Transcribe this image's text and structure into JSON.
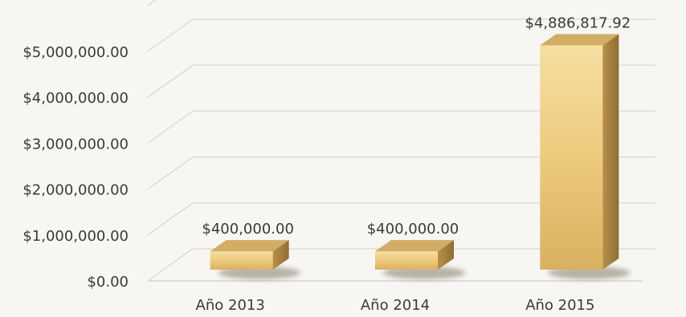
{
  "chart_data": {
    "type": "bar",
    "title": "",
    "xlabel": "",
    "ylabel": "",
    "categories": [
      "Año 2013",
      "Año 2014",
      "Año 2015"
    ],
    "values": [
      400000.0,
      400000.0,
      4886817.92
    ],
    "data_labels": [
      "$400,000.00",
      "$400,000.00",
      "$4,886,817.92"
    ],
    "y_ticks": [
      0,
      1000000,
      2000000,
      3000000,
      4000000,
      5000000
    ],
    "y_tick_labels": [
      "$0.00",
      "$1,000,000.00",
      "$2,000,000.00",
      "$3,000,000.00",
      "$4,000,000.00",
      "$5,000,000.00"
    ],
    "ylim": [
      0,
      5000000
    ],
    "grid": true,
    "style": "3d-column",
    "colors": {
      "bar_light": "#f3d68e",
      "bar_mid": "#e2ba68",
      "bar_dark": "#b28a46",
      "bar_top": "#d1ad66",
      "grid": "#d9d8d3",
      "background": "#f7f6f2"
    }
  }
}
